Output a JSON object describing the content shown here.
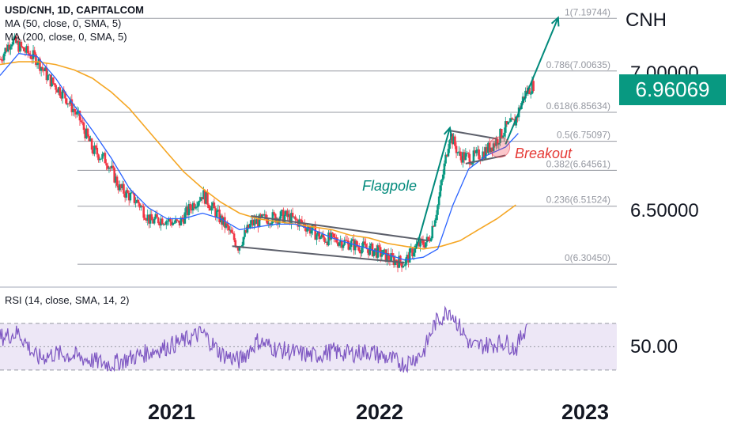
{
  "header": {
    "symbol_line": "USD/CNH, 1D, CAPITALCOM",
    "indicators": [
      "MA (50, close, 0, SMA, 5)",
      "MA (200, close, 0, SMA, 5)"
    ],
    "currency": "CNH"
  },
  "price_axis": {
    "last_price": "6.96069",
    "hidden_label": "7.00000",
    "label_6_5": "6.50000",
    "last_price_color": "#089981"
  },
  "rsi_pane": {
    "title": "RSI (14, close, SMA, 14, 2)",
    "axis_label": "50.00",
    "line_color": "#7e57c2",
    "band_color": "#ede7f6",
    "upper": 70,
    "mid": 50,
    "lower": 30
  },
  "time_axis": {
    "labels": [
      "2021",
      "2022",
      "2023"
    ]
  },
  "annotations": {
    "flagpole": "Flagpole",
    "breakout": "Breakout",
    "flagpole_color": "#00897b",
    "breakout_color": "#e53935"
  },
  "chart_data": {
    "type": "line",
    "title": "USD/CNH, 1D, CAPITALCOM",
    "x_range": [
      "2020-05-01",
      "2023-02-15"
    ],
    "ylim": [
      6.23,
      7.25
    ],
    "up_color": "#089981",
    "down_color": "#f23645",
    "fibonacci": [
      {
        "ratio": "1",
        "price": "7.19744",
        "label": "1(7.19744)"
      },
      {
        "ratio": "0.786",
        "price": "7.00635",
        "label": "0.786(7.00635)"
      },
      {
        "ratio": "0.618",
        "price": "6.85634",
        "label": "0.618(6.85634)"
      },
      {
        "ratio": "0.5",
        "price": "6.75097",
        "label": "0.5(6.75097)"
      },
      {
        "ratio": "0.382",
        "price": "6.64561",
        "label": "0.382(6.64561)"
      },
      {
        "ratio": "0.236",
        "price": "6.51524",
        "label": "0.236(6.51524)"
      },
      {
        "ratio": "0",
        "price": "6.30450",
        "label": "0(6.30450)"
      }
    ],
    "price_path": [
      [
        "2020-05-01",
        7.05
      ],
      [
        "2020-05-20",
        7.12
      ],
      [
        "2020-06-10",
        7.08
      ],
      [
        "2020-07-01",
        7.05
      ],
      [
        "2020-07-20",
        6.98
      ],
      [
        "2020-08-15",
        6.92
      ],
      [
        "2020-09-10",
        6.83
      ],
      [
        "2020-10-01",
        6.72
      ],
      [
        "2020-10-25",
        6.68
      ],
      [
        "2020-11-15",
        6.58
      ],
      [
        "2020-12-15",
        6.53
      ],
      [
        "2021-01-05",
        6.46
      ],
      [
        "2021-01-25",
        6.47
      ],
      [
        "2021-02-20",
        6.45
      ],
      [
        "2021-03-15",
        6.52
      ],
      [
        "2021-04-01",
        6.56
      ],
      [
        "2021-04-20",
        6.5
      ],
      [
        "2021-05-10",
        6.44
      ],
      [
        "2021-05-30",
        6.37
      ],
      [
        "2021-06-20",
        6.45
      ],
      [
        "2021-07-15",
        6.47
      ],
      [
        "2021-08-15",
        6.48
      ],
      [
        "2021-09-15",
        6.45
      ],
      [
        "2021-10-15",
        6.4
      ],
      [
        "2021-11-15",
        6.39
      ],
      [
        "2021-12-15",
        6.37
      ],
      [
        "2022-01-15",
        6.35
      ],
      [
        "2022-02-10",
        6.32
      ],
      [
        "2022-03-01",
        6.31
      ],
      [
        "2022-03-20",
        6.37
      ],
      [
        "2022-04-10",
        6.39
      ],
      [
        "2022-04-25",
        6.52
      ],
      [
        "2022-05-15",
        6.78
      ],
      [
        "2022-05-30",
        6.7
      ],
      [
        "2022-06-20",
        6.69
      ],
      [
        "2022-07-10",
        6.71
      ],
      [
        "2022-07-30",
        6.75
      ],
      [
        "2022-08-15",
        6.8
      ],
      [
        "2022-08-30",
        6.82
      ],
      [
        "2022-09-15",
        6.92
      ],
      [
        "2022-10-01",
        6.96
      ]
    ],
    "ma50_path": [
      [
        "2020-05-01",
        6.99
      ],
      [
        "2020-06-01",
        7.07
      ],
      [
        "2020-07-01",
        7.06
      ],
      [
        "2020-08-01",
        6.98
      ],
      [
        "2020-09-01",
        6.88
      ],
      [
        "2020-10-01",
        6.79
      ],
      [
        "2020-11-01",
        6.69
      ],
      [
        "2020-12-01",
        6.58
      ],
      [
        "2021-01-01",
        6.51
      ],
      [
        "2021-02-01",
        6.47
      ],
      [
        "2021-03-01",
        6.47
      ],
      [
        "2021-04-01",
        6.49
      ],
      [
        "2021-05-01",
        6.47
      ],
      [
        "2021-06-01",
        6.43
      ],
      [
        "2021-07-01",
        6.44
      ],
      [
        "2021-08-01",
        6.45
      ],
      [
        "2021-09-01",
        6.45
      ],
      [
        "2021-10-01",
        6.43
      ],
      [
        "2021-11-01",
        6.4
      ],
      [
        "2021-12-01",
        6.38
      ],
      [
        "2022-01-01",
        6.36
      ],
      [
        "2022-02-01",
        6.34
      ],
      [
        "2022-03-01",
        6.32
      ],
      [
        "2022-04-01",
        6.33
      ],
      [
        "2022-04-25",
        6.36
      ],
      [
        "2022-05-20",
        6.52
      ],
      [
        "2022-06-15",
        6.65
      ],
      [
        "2022-07-15",
        6.7
      ],
      [
        "2022-08-15",
        6.73
      ],
      [
        "2022-09-05",
        6.78
      ]
    ],
    "ma200_path": [
      [
        "2020-05-01",
        7.03
      ],
      [
        "2020-06-01",
        7.04
      ],
      [
        "2020-07-01",
        7.04
      ],
      [
        "2020-08-01",
        7.03
      ],
      [
        "2020-09-01",
        7.01
      ],
      [
        "2020-10-01",
        6.98
      ],
      [
        "2020-11-01",
        6.93
      ],
      [
        "2020-12-01",
        6.87
      ],
      [
        "2021-01-01",
        6.79
      ],
      [
        "2021-02-01",
        6.71
      ],
      [
        "2021-03-01",
        6.64
      ],
      [
        "2021-04-01",
        6.58
      ],
      [
        "2021-05-01",
        6.53
      ],
      [
        "2021-06-01",
        6.49
      ],
      [
        "2021-07-01",
        6.47
      ],
      [
        "2021-08-01",
        6.46
      ],
      [
        "2021-09-01",
        6.45
      ],
      [
        "2021-10-01",
        6.44
      ],
      [
        "2021-11-01",
        6.43
      ],
      [
        "2021-12-01",
        6.41
      ],
      [
        "2022-01-01",
        6.4
      ],
      [
        "2022-02-01",
        6.38
      ],
      [
        "2022-03-01",
        6.37
      ],
      [
        "2022-04-01",
        6.36
      ],
      [
        "2022-05-01",
        6.37
      ],
      [
        "2022-06-01",
        6.39
      ],
      [
        "2022-07-01",
        6.43
      ],
      [
        "2022-08-01",
        6.47
      ],
      [
        "2022-09-01",
        6.52
      ]
    ],
    "rsi_path": [
      [
        "2020-05-01",
        58
      ],
      [
        "2020-06-01",
        62
      ],
      [
        "2020-07-01",
        40
      ],
      [
        "2020-08-01",
        44
      ],
      [
        "2020-09-01",
        42
      ],
      [
        "2020-10-01",
        38
      ],
      [
        "2020-11-01",
        35
      ],
      [
        "2020-12-01",
        40
      ],
      [
        "2021-01-01",
        45
      ],
      [
        "2021-02-01",
        50
      ],
      [
        "2021-03-01",
        55
      ],
      [
        "2021-04-01",
        62
      ],
      [
        "2021-05-01",
        44
      ],
      [
        "2021-06-01",
        38
      ],
      [
        "2021-07-01",
        55
      ],
      [
        "2021-08-01",
        48
      ],
      [
        "2021-09-01",
        45
      ],
      [
        "2021-10-01",
        42
      ],
      [
        "2021-11-01",
        46
      ],
      [
        "2021-12-01",
        44
      ],
      [
        "2022-01-01",
        46
      ],
      [
        "2022-02-01",
        40
      ],
      [
        "2022-03-01",
        35
      ],
      [
        "2022-04-01",
        45
      ],
      [
        "2022-04-20",
        70
      ],
      [
        "2022-05-15",
        82
      ],
      [
        "2022-06-01",
        66
      ],
      [
        "2022-06-20",
        50
      ],
      [
        "2022-07-20",
        52
      ],
      [
        "2022-08-15",
        54
      ],
      [
        "2022-09-01",
        48
      ],
      [
        "2022-09-20",
        70
      ]
    ],
    "drawings": {
      "descending_wedge": {
        "upper": [
          [
            "2021-06-20",
            6.48
          ],
          [
            "2022-04-10",
            6.39
          ]
        ],
        "lower": [
          [
            "2021-05-20",
            6.37
          ],
          [
            "2022-03-01",
            6.31
          ]
        ]
      },
      "pennant": {
        "upper": [
          [
            "2022-05-15",
            6.79
          ],
          [
            "2022-08-01",
            6.76
          ]
        ],
        "lower": [
          [
            "2022-06-10",
            6.67
          ],
          [
            "2022-08-15",
            6.7
          ]
        ]
      },
      "flagpole_arrow": [
        [
          "2022-03-20",
          6.36
        ],
        [
          "2022-05-15",
          6.8
        ]
      ],
      "projection_arrow": [
        [
          "2022-08-15",
          6.74
        ],
        [
          "2022-11-10",
          7.2
        ]
      ],
      "breakout_point": [
        "2022-08-05",
        6.73
      ]
    }
  }
}
